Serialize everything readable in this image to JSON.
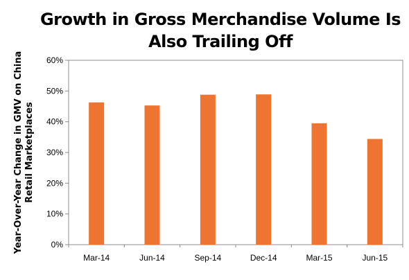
{
  "chart_data": {
    "type": "bar",
    "title": "Growth in Gross Merchandise Volume Is Also Trailing Off",
    "title_lines": [
      "Growth in Gross Merchandise Volume Is",
      "Also Trailing Off"
    ],
    "ylabel": "Year-Over-Year Change in GMV on China Retail Marketplaces",
    "ylabel_lines": [
      "Year-Over-Year Change in GMV on China",
      "Retail Marketplaces"
    ],
    "xlabel": "",
    "categories": [
      "Mar-14",
      "Jun-14",
      "Sep-14",
      "Dec-14",
      "Mar-15",
      "Jun-15"
    ],
    "values": [
      46.3,
      45.3,
      48.8,
      48.9,
      39.5,
      34.4
    ],
    "ylim": [
      0,
      60
    ],
    "yticks": [
      0,
      10,
      20,
      30,
      40,
      50,
      60
    ],
    "ytick_labels": [
      "0%",
      "10%",
      "20%",
      "30%",
      "40%",
      "50%",
      "60%"
    ],
    "grid": false,
    "legend": "none",
    "bar_color": "#ED7431",
    "frame_color": "#8C8C8C"
  }
}
